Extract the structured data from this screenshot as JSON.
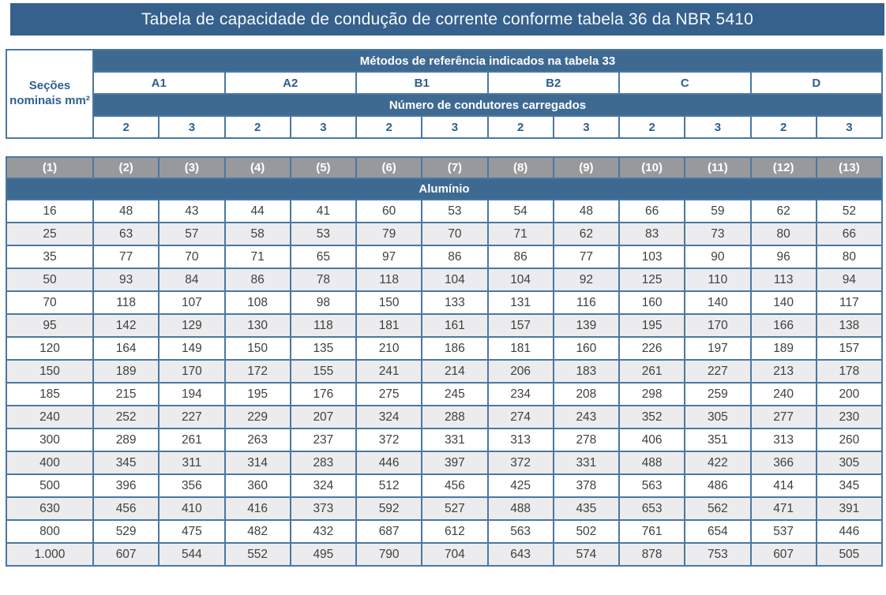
{
  "chart_data": {
    "type": "table",
    "title": "Tabela de capacidade de condução de corrente conforme tabela 36 da NBR 5410",
    "sections_label": "Seções nominais mm²",
    "methods_label": "Métodos de referência indicados na tabela 33",
    "methods": [
      "A1",
      "A2",
      "B1",
      "B2",
      "C",
      "D"
    ],
    "conductors_label": "Número de condutores carregados",
    "conductor_counts": [
      "2",
      "3",
      "2",
      "3",
      "2",
      "3",
      "2",
      "3",
      "2",
      "3",
      "2",
      "3"
    ],
    "column_refs": [
      "(1)",
      "(2)",
      "(3)",
      "(4)",
      "(5)",
      "(6)",
      "(7)",
      "(8)",
      "(9)",
      "(10)",
      "(11)",
      "(12)",
      "(13)"
    ],
    "material_label": "Alumínio",
    "rows": [
      {
        "section": "16",
        "values": [
          48,
          43,
          44,
          41,
          60,
          53,
          54,
          48,
          66,
          59,
          62,
          52
        ]
      },
      {
        "section": "25",
        "values": [
          63,
          57,
          58,
          53,
          79,
          70,
          71,
          62,
          83,
          73,
          80,
          66
        ]
      },
      {
        "section": "35",
        "values": [
          77,
          70,
          71,
          65,
          97,
          86,
          86,
          77,
          103,
          90,
          96,
          80
        ]
      },
      {
        "section": "50",
        "values": [
          93,
          84,
          86,
          78,
          118,
          104,
          104,
          92,
          125,
          110,
          113,
          94
        ]
      },
      {
        "section": "70",
        "values": [
          118,
          107,
          108,
          98,
          150,
          133,
          131,
          116,
          160,
          140,
          140,
          117
        ]
      },
      {
        "section": "95",
        "values": [
          142,
          129,
          130,
          118,
          181,
          161,
          157,
          139,
          195,
          170,
          166,
          138
        ]
      },
      {
        "section": "120",
        "values": [
          164,
          149,
          150,
          135,
          210,
          186,
          181,
          160,
          226,
          197,
          189,
          157
        ]
      },
      {
        "section": "150",
        "values": [
          189,
          170,
          172,
          155,
          241,
          214,
          206,
          183,
          261,
          227,
          213,
          178
        ]
      },
      {
        "section": "185",
        "values": [
          215,
          194,
          195,
          176,
          275,
          245,
          234,
          208,
          298,
          259,
          240,
          200
        ]
      },
      {
        "section": "240",
        "values": [
          252,
          227,
          229,
          207,
          324,
          288,
          274,
          243,
          352,
          305,
          277,
          230
        ]
      },
      {
        "section": "300",
        "values": [
          289,
          261,
          263,
          237,
          372,
          331,
          313,
          278,
          406,
          351,
          313,
          260
        ]
      },
      {
        "section": "400",
        "values": [
          345,
          311,
          314,
          283,
          446,
          397,
          372,
          331,
          488,
          422,
          366,
          305
        ]
      },
      {
        "section": "500",
        "values": [
          396,
          356,
          360,
          324,
          512,
          456,
          425,
          378,
          563,
          486,
          414,
          345
        ]
      },
      {
        "section": "630",
        "values": [
          456,
          410,
          416,
          373,
          592,
          527,
          488,
          435,
          653,
          562,
          471,
          391
        ]
      },
      {
        "section": "800",
        "values": [
          529,
          475,
          482,
          432,
          687,
          612,
          563,
          502,
          761,
          654,
          537,
          446
        ]
      },
      {
        "section": "1.000",
        "values": [
          607,
          544,
          552,
          495,
          790,
          704,
          643,
          574,
          878,
          753,
          607,
          505
        ]
      }
    ],
    "layout": {
      "striped": true,
      "stripe_starts_on_second_row": true
    }
  },
  "colors": {
    "title_bar": "#35618c",
    "header_band": "#3e6a92",
    "gray_ref_row": "#98999b",
    "stripe_row": "#ececee",
    "cell_border": "#4a78a3",
    "header_text_blue": "#2e608f",
    "data_text": "#3f3f3f",
    "band_text": "#ffffff"
  }
}
